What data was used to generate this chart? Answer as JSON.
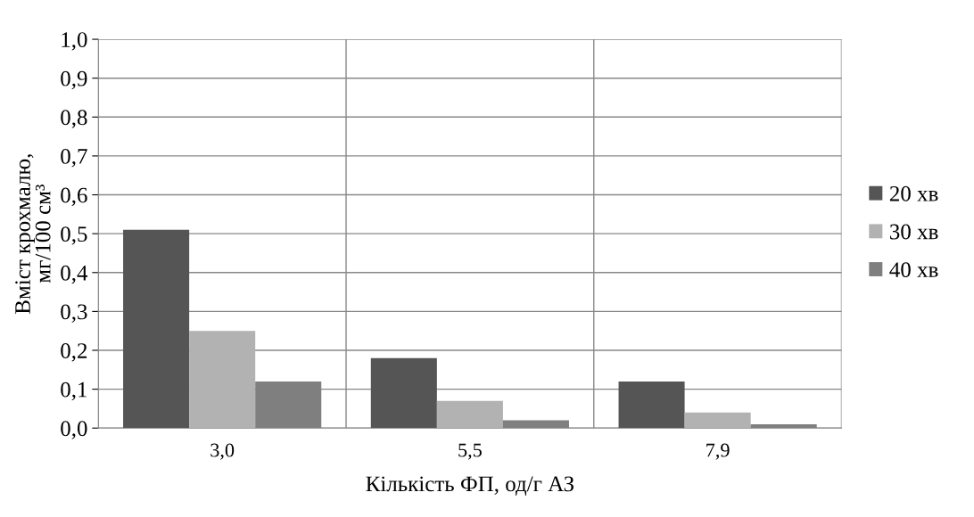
{
  "chart_data": {
    "type": "bar",
    "xlabel": "Кількість ФП, од/г АЗ",
    "ylabel": "Вміст крохмалю,\nмг/100 см³",
    "categories": [
      "3,0",
      "5,5",
      "7,9"
    ],
    "series": [
      {
        "name": "20 хв",
        "color": "#555555",
        "values": [
          0.51,
          0.18,
          0.12
        ]
      },
      {
        "name": "30 хв",
        "color": "#b2b2b2",
        "values": [
          0.25,
          0.07,
          0.04
        ]
      },
      {
        "name": "40 хв",
        "color": "#7f7f7f",
        "values": [
          0.12,
          0.02,
          0.01
        ]
      }
    ],
    "ylim": [
      0,
      1.0
    ],
    "yticks": [
      {
        "value": 0,
        "label": "0,0"
      },
      {
        "value": 0.1,
        "label": "0,1"
      },
      {
        "value": 0.2,
        "label": "0,2"
      },
      {
        "value": 0.3,
        "label": "0,3"
      },
      {
        "value": 0.4,
        "label": "0,4"
      },
      {
        "value": 0.5,
        "label": "0,5"
      },
      {
        "value": 0.6,
        "label": "0,6"
      },
      {
        "value": 0.7,
        "label": "0,7"
      },
      {
        "value": 0.8,
        "label": "0,8"
      },
      {
        "value": 0.9,
        "label": "0,9"
      },
      {
        "value": 1.0,
        "label": "1,0"
      }
    ],
    "grid": true,
    "legend": "right"
  }
}
